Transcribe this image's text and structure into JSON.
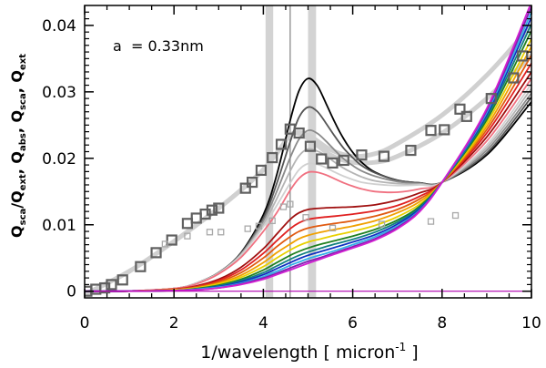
{
  "chart_data": {
    "type": "line",
    "title": "",
    "annotation": "a  = 0.33nm",
    "xlabel": "1/wavelength [ micron",
    "xlabel_sup": "-1",
    "xlabel_end": " ]",
    "ylabel": "Q",
    "ylabel_parts": [
      {
        "t": "Q",
        "s": "sca"
      },
      {
        "t": "/Q",
        "s": "ext"
      },
      {
        "t": ",  Q",
        "s": "abs"
      },
      {
        "t": ",  Q",
        "s": "sca"
      },
      {
        "t": ",  Q",
        "s": "ext"
      }
    ],
    "xlim": [
      0,
      10
    ],
    "ylim": [
      -0.001,
      0.043
    ],
    "xticks": [
      0,
      2,
      4,
      6,
      8,
      10
    ],
    "xtick_labels": [
      "0",
      "2",
      "4",
      "6",
      "8",
      "10"
    ],
    "yticks": [
      0,
      0.01,
      0.02,
      0.03,
      0.04
    ],
    "ytick_labels": [
      "0",
      "0.01",
      "0.02",
      "0.03",
      "0.04"
    ],
    "bands": [
      {
        "name": "band-4.1",
        "x0": 4.05,
        "x1": 4.22,
        "color": "#d3d3d3"
      },
      {
        "name": "band-5.1",
        "x0": 5.0,
        "x1": 5.18,
        "color": "#d3d3d3"
      }
    ],
    "vlines": [
      {
        "name": "vline-4.6",
        "x": 4.6,
        "color": "#9a9a9a"
      }
    ],
    "wide_gray_curves": [
      {
        "name": "upper-fit",
        "x": [
          0,
          1,
          2,
          3,
          3.6,
          4.0,
          4.35,
          4.65,
          5.0,
          5.5,
          6.0,
          6.5,
          7.0,
          8.0,
          9.0,
          10.0
        ],
        "y": [
          -0.0005,
          0.003,
          0.0075,
          0.0125,
          0.0158,
          0.0183,
          0.0212,
          0.0237,
          0.0235,
          0.0213,
          0.0203,
          0.0207,
          0.0222,
          0.0265,
          0.0325,
          0.04
        ]
      },
      {
        "name": "lower-fit",
        "x": [
          0,
          1,
          2,
          3,
          3.6,
          4.0,
          4.35,
          4.65,
          5.0,
          5.5,
          6.0,
          6.5,
          7.0,
          8.0,
          9.0,
          10.0
        ],
        "y": [
          -0.0005,
          0.003,
          0.0075,
          0.0125,
          0.0158,
          0.0183,
          0.0212,
          0.0237,
          0.023,
          0.0205,
          0.0194,
          0.0194,
          0.0203,
          0.0238,
          0.029,
          0.0355
        ]
      }
    ],
    "series": [
      {
        "name": "black",
        "color": "#000000",
        "x": [
          0,
          1,
          2,
          2.5,
          3,
          3.5,
          4,
          4.3,
          4.6,
          4.8,
          5.0,
          5.2,
          5.4,
          5.6,
          5.8,
          6.0,
          6.2,
          6.5,
          7.0,
          7.5,
          8.0,
          9.0,
          10.0
        ],
        "y": [
          0,
          3e-05,
          0.0004,
          0.0012,
          0.0028,
          0.0058,
          0.0115,
          0.0175,
          0.0257,
          0.0302,
          0.032,
          0.031,
          0.0283,
          0.0254,
          0.0229,
          0.0209,
          0.0194,
          0.0179,
          0.0167,
          0.0163,
          0.0164,
          0.0205,
          0.0285
        ]
      },
      {
        "name": "dark-gray",
        "color": "#555555",
        "x": [
          0,
          1,
          2,
          2.5,
          3,
          3.5,
          4,
          4.3,
          4.6,
          4.8,
          5.0,
          5.2,
          5.4,
          5.6,
          5.8,
          6.0,
          6.2,
          6.5,
          7.0,
          7.5,
          8.0,
          9.0,
          10.0
        ],
        "y": [
          0,
          3e-05,
          0.0004,
          0.0012,
          0.0028,
          0.0057,
          0.011,
          0.0162,
          0.0225,
          0.0262,
          0.0277,
          0.0271,
          0.0253,
          0.0233,
          0.0215,
          0.0201,
          0.0189,
          0.0178,
          0.0167,
          0.0163,
          0.0164,
          0.0208,
          0.0292
        ]
      },
      {
        "name": "mid-gray",
        "color": "#8a8a8a",
        "x": [
          0,
          1,
          2,
          2.5,
          3,
          3.5,
          4,
          4.3,
          4.6,
          4.8,
          5.0,
          5.2,
          5.4,
          5.6,
          5.8,
          6.0,
          6.2,
          6.5,
          7.0,
          7.5,
          8.0,
          9.0,
          10.0
        ],
        "y": [
          0,
          3e-05,
          0.0004,
          0.0012,
          0.0028,
          0.0056,
          0.0106,
          0.015,
          0.0201,
          0.0229,
          0.0242,
          0.0238,
          0.0226,
          0.0212,
          0.0199,
          0.0189,
          0.0181,
          0.0173,
          0.0165,
          0.0162,
          0.0164,
          0.0212,
          0.0298
        ]
      },
      {
        "name": "light-gray",
        "color": "#b4b4b4",
        "x": [
          0,
          1,
          2,
          2.5,
          3,
          3.5,
          4,
          4.3,
          4.6,
          4.8,
          5.0,
          5.2,
          5.4,
          5.6,
          5.8,
          6.0,
          6.2,
          6.5,
          7.0,
          7.5,
          8.0,
          9.0,
          10.0
        ],
        "y": [
          0,
          3e-05,
          0.0004,
          0.0012,
          0.0027,
          0.0055,
          0.0101,
          0.0139,
          0.0181,
          0.0204,
          0.0214,
          0.0211,
          0.0204,
          0.0194,
          0.0185,
          0.0178,
          0.0172,
          0.0166,
          0.0162,
          0.0161,
          0.0164,
          0.0216,
          0.0305
        ]
      },
      {
        "name": "lightest-gray",
        "color": "#d0d0d0",
        "x": [
          0,
          1,
          2,
          2.5,
          3,
          3.5,
          4,
          4.3,
          4.6,
          4.8,
          5.0,
          5.2,
          5.4,
          5.6,
          5.8,
          6.0,
          6.2,
          6.5,
          7.0,
          7.5,
          8.0,
          9.0,
          10.0
        ],
        "y": [
          0,
          3e-05,
          0.0004,
          0.0012,
          0.0027,
          0.0054,
          0.0097,
          0.0129,
          0.0163,
          0.0183,
          0.0192,
          0.0191,
          0.0186,
          0.0179,
          0.0173,
          0.0168,
          0.0164,
          0.0161,
          0.0159,
          0.016,
          0.0164,
          0.022,
          0.0312
        ]
      },
      {
        "name": "pink",
        "color": "#f07080",
        "x": [
          0,
          1,
          2,
          2.5,
          3,
          3.5,
          4,
          4.3,
          4.6,
          4.8,
          5.0,
          5.2,
          5.4,
          5.6,
          5.8,
          6.0,
          6.2,
          6.5,
          7.0,
          7.5,
          8.0,
          9.0,
          10.0
        ],
        "y": [
          0,
          3e-05,
          0.0004,
          0.0011,
          0.0026,
          0.0051,
          0.009,
          0.0118,
          0.0152,
          0.017,
          0.0179,
          0.0179,
          0.0175,
          0.0169,
          0.0163,
          0.0158,
          0.0154,
          0.015,
          0.0149,
          0.0154,
          0.0164,
          0.0226,
          0.032
        ]
      },
      {
        "name": "dark-red",
        "color": "#a01010",
        "x": [
          0,
          1,
          2,
          2.5,
          3,
          3.5,
          4,
          4.3,
          4.6,
          4.8,
          5.0,
          5.3,
          5.6,
          6.0,
          6.5,
          7.0,
          7.5,
          8.0,
          9.0,
          10.0
        ],
        "y": [
          0,
          2e-05,
          0.0003,
          0.0008,
          0.0018,
          0.0036,
          0.0064,
          0.0086,
          0.0108,
          0.0118,
          0.0123,
          0.0125,
          0.0126,
          0.0127,
          0.013,
          0.0137,
          0.0148,
          0.0164,
          0.0232,
          0.033
        ]
      },
      {
        "name": "red",
        "color": "#e02020",
        "x": [
          0,
          1,
          2,
          2.5,
          3,
          3.5,
          4,
          4.3,
          4.6,
          4.8,
          5.0,
          5.3,
          5.6,
          6.0,
          6.5,
          7.0,
          7.5,
          8.0,
          9.0,
          10.0
        ],
        "y": [
          0,
          2e-05,
          0.0003,
          0.0007,
          0.0016,
          0.0032,
          0.0057,
          0.0076,
          0.0094,
          0.0103,
          0.0108,
          0.0111,
          0.0113,
          0.0116,
          0.0121,
          0.0129,
          0.0143,
          0.0164,
          0.0238,
          0.0343
        ]
      },
      {
        "name": "dark-orange",
        "color": "#e05a10",
        "x": [
          0,
          1,
          2,
          2.5,
          3,
          3.5,
          4,
          4.3,
          4.6,
          4.8,
          5.0,
          5.3,
          5.6,
          6.0,
          6.5,
          7.0,
          7.5,
          8.0,
          9.0,
          10.0
        ],
        "y": [
          0,
          2e-05,
          0.0002,
          0.0006,
          0.0014,
          0.0028,
          0.005,
          0.0067,
          0.0082,
          0.009,
          0.0095,
          0.0099,
          0.0102,
          0.0106,
          0.0113,
          0.0123,
          0.0139,
          0.0164,
          0.0243,
          0.0355
        ]
      },
      {
        "name": "orange",
        "color": "#f0a000",
        "x": [
          0,
          1,
          2,
          2.5,
          3,
          3.5,
          4,
          4.3,
          4.6,
          4.8,
          5.0,
          5.3,
          5.6,
          6.0,
          6.5,
          7.0,
          7.5,
          8.0,
          9.0,
          10.0
        ],
        "y": [
          0,
          2e-05,
          0.0002,
          0.0005,
          0.0012,
          0.0024,
          0.0043,
          0.0058,
          0.0071,
          0.0079,
          0.0084,
          0.0089,
          0.0093,
          0.0098,
          0.0106,
          0.0118,
          0.0135,
          0.0164,
          0.0248,
          0.0368
        ]
      },
      {
        "name": "yellow",
        "color": "#e8d000",
        "x": [
          0,
          1,
          2,
          2.5,
          3,
          3.5,
          4,
          4.3,
          4.6,
          4.8,
          5.0,
          5.3,
          5.6,
          6.0,
          6.5,
          7.0,
          7.5,
          8.0,
          9.0,
          10.0
        ],
        "y": [
          0,
          1e-05,
          0.0002,
          0.0005,
          0.0011,
          0.0021,
          0.0037,
          0.005,
          0.0062,
          0.0069,
          0.0074,
          0.0079,
          0.0084,
          0.009,
          0.0099,
          0.0112,
          0.0131,
          0.0164,
          0.0253,
          0.038
        ]
      },
      {
        "name": "green",
        "color": "#208020",
        "x": [
          0,
          1,
          2,
          2.5,
          3,
          3.5,
          4,
          4.3,
          4.6,
          4.8,
          5.0,
          5.3,
          5.6,
          6.0,
          6.5,
          7.0,
          7.5,
          8.0,
          9.0,
          10.0
        ],
        "y": [
          0,
          1e-05,
          0.0001,
          0.0004,
          0.0009,
          0.0018,
          0.0032,
          0.0043,
          0.0054,
          0.006,
          0.0065,
          0.0071,
          0.0076,
          0.0083,
          0.0093,
          0.0107,
          0.0128,
          0.0164,
          0.0258,
          0.0392
        ]
      },
      {
        "name": "teal",
        "color": "#108080",
        "x": [
          0,
          1,
          2,
          2.5,
          3,
          3.5,
          4,
          4.3,
          4.6,
          4.8,
          5.0,
          5.3,
          5.6,
          6.0,
          6.5,
          7.0,
          7.5,
          8.0,
          9.0,
          10.0
        ],
        "y": [
          0,
          1e-05,
          0.0001,
          0.0003,
          0.0008,
          0.0016,
          0.0028,
          0.0038,
          0.0048,
          0.0054,
          0.0059,
          0.0065,
          0.0071,
          0.0078,
          0.0089,
          0.0104,
          0.0126,
          0.0164,
          0.0262,
          0.0402
        ]
      },
      {
        "name": "blue",
        "color": "#1030c0",
        "x": [
          0,
          1,
          2,
          2.5,
          3,
          3.5,
          4,
          4.3,
          4.6,
          4.8,
          5.0,
          5.3,
          5.6,
          6.0,
          6.5,
          7.0,
          7.5,
          8.0,
          9.0,
          10.0
        ],
        "y": [
          0,
          1e-05,
          0.0001,
          0.0003,
          0.0007,
          0.0014,
          0.0025,
          0.0034,
          0.0043,
          0.0049,
          0.0054,
          0.006,
          0.0066,
          0.0074,
          0.0085,
          0.0101,
          0.0124,
          0.0164,
          0.0266,
          0.0412
        ]
      },
      {
        "name": "sky-blue",
        "color": "#30b0e8",
        "x": [
          0,
          1,
          2,
          2.5,
          3,
          3.5,
          4,
          4.3,
          4.6,
          4.8,
          5.0,
          5.3,
          5.6,
          6.0,
          6.5,
          7.0,
          7.5,
          8.0,
          9.0,
          10.0
        ],
        "y": [
          0,
          1e-05,
          0.0001,
          0.0003,
          0.0006,
          0.0012,
          0.0022,
          0.003,
          0.0039,
          0.0044,
          0.0049,
          0.0055,
          0.0061,
          0.007,
          0.0082,
          0.0098,
          0.0122,
          0.0164,
          0.0269,
          0.042
        ]
      },
      {
        "name": "purple",
        "color": "#8020b0",
        "x": [
          0,
          1,
          2,
          2.5,
          3,
          3.5,
          4,
          4.3,
          4.6,
          4.8,
          5.0,
          5.3,
          5.6,
          6.0,
          6.5,
          7.0,
          7.5,
          8.0,
          9.0,
          10.0
        ],
        "y": [
          0,
          1e-05,
          0.0001,
          0.0002,
          0.0005,
          0.0011,
          0.002,
          0.0027,
          0.0035,
          0.004,
          0.0045,
          0.0051,
          0.0058,
          0.0067,
          0.0079,
          0.0096,
          0.0121,
          0.0164,
          0.0272,
          0.0428
        ]
      },
      {
        "name": "magenta",
        "color": "#d020d0",
        "x": [
          0,
          1,
          2,
          2.5,
          3,
          3.5,
          4,
          4.3,
          4.6,
          4.8,
          5.0,
          5.3,
          5.6,
          6.0,
          6.5,
          7.0,
          7.5,
          8.0,
          9.0,
          10.0
        ],
        "y": [
          0,
          1e-05,
          0.0001,
          0.0002,
          0.0005,
          0.001,
          0.0018,
          0.0025,
          0.0032,
          0.0037,
          0.0042,
          0.0049,
          0.0056,
          0.0065,
          0.0077,
          0.0094,
          0.012,
          0.0164,
          0.0275,
          0.0435
        ]
      }
    ],
    "markers_dark": {
      "color": "#606060",
      "points": [
        {
          "x": 0.05,
          "y": 0.0
        },
        {
          "x": 0.25,
          "y": 0.0003
        },
        {
          "x": 0.45,
          "y": 0.0005
        },
        {
          "x": 0.6,
          "y": 0.001
        },
        {
          "x": 0.85,
          "y": 0.0017
        },
        {
          "x": 1.25,
          "y": 0.0037
        },
        {
          "x": 1.6,
          "y": 0.0058
        },
        {
          "x": 1.95,
          "y": 0.0077
        },
        {
          "x": 2.3,
          "y": 0.0102
        },
        {
          "x": 2.5,
          "y": 0.011
        },
        {
          "x": 2.7,
          "y": 0.0116
        },
        {
          "x": 2.85,
          "y": 0.0122
        },
        {
          "x": 3.0,
          "y": 0.0125
        },
        {
          "x": 3.6,
          "y": 0.0155
        },
        {
          "x": 3.75,
          "y": 0.0164
        },
        {
          "x": 3.95,
          "y": 0.0182
        },
        {
          "x": 4.2,
          "y": 0.0201
        },
        {
          "x": 4.4,
          "y": 0.0221
        },
        {
          "x": 4.6,
          "y": 0.0244
        },
        {
          "x": 4.8,
          "y": 0.0238
        },
        {
          "x": 5.05,
          "y": 0.0218
        },
        {
          "x": 5.3,
          "y": 0.0199
        },
        {
          "x": 5.55,
          "y": 0.0193
        },
        {
          "x": 5.8,
          "y": 0.0197
        },
        {
          "x": 6.2,
          "y": 0.0205
        },
        {
          "x": 6.7,
          "y": 0.0203
        },
        {
          "x": 7.3,
          "y": 0.0212
        },
        {
          "x": 7.75,
          "y": 0.0242
        },
        {
          "x": 8.05,
          "y": 0.0243
        },
        {
          "x": 8.4,
          "y": 0.0274
        },
        {
          "x": 8.55,
          "y": 0.0263
        },
        {
          "x": 9.1,
          "y": 0.029
        },
        {
          "x": 9.6,
          "y": 0.0321
        },
        {
          "x": 9.8,
          "y": 0.0354
        }
      ]
    },
    "markers_light": {
      "color": "#a8a8a8",
      "points": [
        {
          "x": 1.8,
          "y": 0.0071
        },
        {
          "x": 2.3,
          "y": 0.0083
        },
        {
          "x": 2.8,
          "y": 0.0089
        },
        {
          "x": 3.05,
          "y": 0.0089
        },
        {
          "x": 3.65,
          "y": 0.0094
        },
        {
          "x": 3.9,
          "y": 0.0098
        },
        {
          "x": 4.2,
          "y": 0.0106
        },
        {
          "x": 4.45,
          "y": 0.0127
        },
        {
          "x": 4.6,
          "y": 0.0131
        },
        {
          "x": 4.95,
          "y": 0.0111
        },
        {
          "x": 5.55,
          "y": 0.0095
        },
        {
          "x": 6.65,
          "y": 0.0101
        },
        {
          "x": 7.75,
          "y": 0.0105
        },
        {
          "x": 8.3,
          "y": 0.0114
        }
      ]
    }
  }
}
